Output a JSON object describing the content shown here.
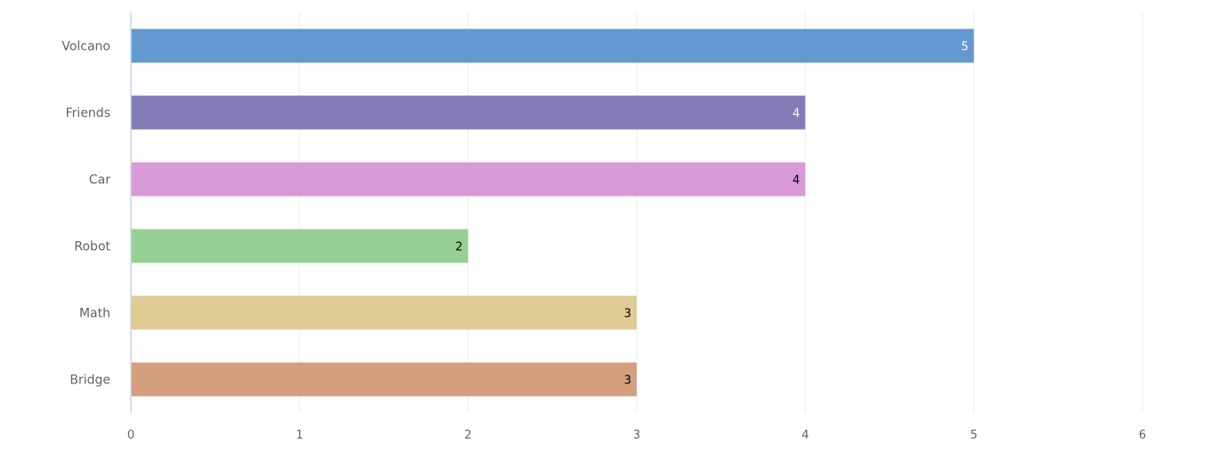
{
  "chart_data": {
    "type": "bar",
    "orientation": "horizontal",
    "title": "",
    "xlabel": "",
    "ylabel": "",
    "categories": [
      "Volcano",
      "Friends",
      "Car",
      "Robot",
      "Math",
      "Bridge"
    ],
    "values": [
      5,
      4,
      4,
      2,
      3,
      3
    ],
    "colors": [
      "#6399d0",
      "#847cb6",
      "#d899d9",
      "#97d094",
      "#dfcb93",
      "#d39f7e"
    ],
    "value_label_colors": [
      "#ffffff",
      "#ffffff",
      "#000000",
      "#000000",
      "#000000",
      "#000000"
    ],
    "xlim": [
      0,
      6
    ],
    "xticks": [
      "0",
      "1",
      "2",
      "3",
      "4",
      "5",
      "6"
    ],
    "grid": "vertical",
    "legend": "none"
  }
}
